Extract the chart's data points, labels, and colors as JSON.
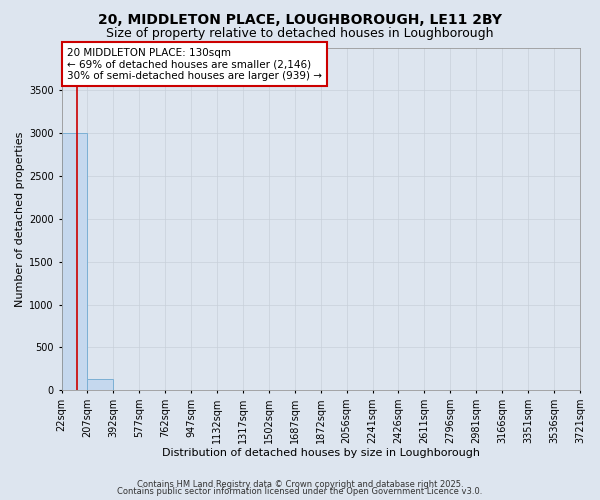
{
  "title1": "20, MIDDLETON PLACE, LOUGHBOROUGH, LE11 2BY",
  "title2": "Size of property relative to detached houses in Loughborough",
  "xlabel": "Distribution of detached houses by size in Loughborough",
  "ylabel": "Number of detached properties",
  "bar_edges": [
    22,
    207,
    392,
    577,
    762,
    947,
    1132,
    1317,
    1502,
    1687,
    1872,
    2056,
    2241,
    2426,
    2611,
    2796,
    2981,
    3166,
    3351,
    3536,
    3721
  ],
  "bar_heights": [
    3000,
    130,
    0,
    0,
    0,
    0,
    0,
    0,
    0,
    0,
    0,
    0,
    0,
    0,
    0,
    0,
    0,
    0,
    0,
    0
  ],
  "bar_color": "#c5d8ee",
  "bar_edge_color": "#7bafd4",
  "red_line_x": 130,
  "ylim": [
    0,
    4000
  ],
  "yticks": [
    0,
    500,
    1000,
    1500,
    2000,
    2500,
    3000,
    3500
  ],
  "annotation_title": "20 MIDDLETON PLACE: 130sqm",
  "annotation_line2": "← 69% of detached houses are smaller (2,146)",
  "annotation_line3": "30% of semi-detached houses are larger (939) →",
  "annotation_box_color": "#ffffff",
  "annotation_box_edge": "#cc0000",
  "grid_color": "#c8d0da",
  "bg_color": "#dde5ef",
  "plot_bg_color": "#dde5ef",
  "footer1": "Contains HM Land Registry data © Crown copyright and database right 2025.",
  "footer2": "Contains public sector information licensed under the Open Government Licence v3.0.",
  "title_fontsize": 10,
  "subtitle_fontsize": 9
}
